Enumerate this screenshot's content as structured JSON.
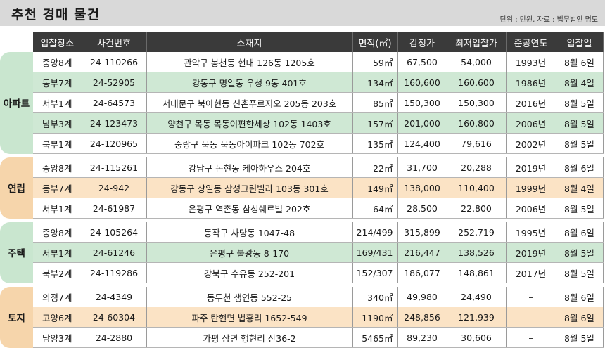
{
  "title": "추천 경매 물건",
  "unit_note": "단위 : 만원, 자료 : 법무법인 명도",
  "headers": [
    "입찰장소",
    "사건번호",
    "소재지",
    "면적(㎡)",
    "감정가",
    "최저입찰가",
    "준공연도",
    "입찰일"
  ],
  "groups": [
    {
      "label": "아파트",
      "theme": "green",
      "rows": [
        {
          "court": "중앙8계",
          "case": "24-110266",
          "address": "관악구 봉천동 현대 126동 1205호",
          "area": "59㎡",
          "appraisal": "67,500",
          "min_bid": "54,000",
          "built": "1993년",
          "date": "8월 6일"
        },
        {
          "court": "동부7계",
          "case": "24-52905",
          "address": "강동구 명일동 우성 9동 401호",
          "area": "134㎡",
          "appraisal": "160,600",
          "min_bid": "160,600",
          "built": "1986년",
          "date": "8월 4일"
        },
        {
          "court": "서부1계",
          "case": "24-64573",
          "address": "서대문구 북아현동 신촌푸르지오 205동 203호",
          "area": "85㎡",
          "appraisal": "150,300",
          "min_bid": "150,300",
          "built": "2016년",
          "date": "8월 5일"
        },
        {
          "court": "남부3계",
          "case": "24-123473",
          "address": "양천구 목동 목동이편한세상 102동 1403호",
          "area": "157㎡",
          "appraisal": "201,000",
          "min_bid": "160,800",
          "built": "2006년",
          "date": "8월 5일"
        },
        {
          "court": "북부1계",
          "case": "24-120965",
          "address": "중랑구 묵동 묵동아이파크 102동 702호",
          "area": "135㎡",
          "appraisal": "124,400",
          "min_bid": "79,616",
          "built": "2002년",
          "date": "8월 5일"
        }
      ]
    },
    {
      "label": "연립",
      "theme": "orange",
      "rows": [
        {
          "court": "중앙8계",
          "case": "24-115261",
          "address": "강남구 논현동 케아하우스 204호",
          "area": "22㎡",
          "appraisal": "31,700",
          "min_bid": "20,288",
          "built": "2019년",
          "date": "8월 6일"
        },
        {
          "court": "동부7계",
          "case": "24-942",
          "address": "강동구 상일동 삼성그린빌라 103동 301호",
          "area": "149㎡",
          "appraisal": "138,000",
          "min_bid": "110,400",
          "built": "1999년",
          "date": "8월 4일"
        },
        {
          "court": "서부1계",
          "case": "24-61987",
          "address": "은평구 역촌동 삼성쉐르빌 202호",
          "area": "64㎡",
          "appraisal": "28,500",
          "min_bid": "22,800",
          "built": "2006년",
          "date": "8월 5일"
        }
      ]
    },
    {
      "label": "주택",
      "theme": "green",
      "rows": [
        {
          "court": "중앙8계",
          "case": "24-105264",
          "address": "동작구 사당동 1047-48",
          "area": "214/499",
          "appraisal": "315,899",
          "min_bid": "252,719",
          "built": "1995년",
          "date": "8월 6일"
        },
        {
          "court": "서부1계",
          "case": "24-61246",
          "address": "은평구 불광동 8-170",
          "area": "169/431",
          "appraisal": "216,447",
          "min_bid": "138,526",
          "built": "2019년",
          "date": "8월 5일"
        },
        {
          "court": "북부2계",
          "case": "24-119286",
          "address": "강북구 수유동 252-201",
          "area": "152/307",
          "appraisal": "186,077",
          "min_bid": "148,861",
          "built": "2017년",
          "date": "8월 5일"
        }
      ]
    },
    {
      "label": "토지",
      "theme": "orange",
      "rows": [
        {
          "court": "의정7계",
          "case": "24-4349",
          "address": "동두천 생연동 552-25",
          "area": "340㎡",
          "appraisal": "49,980",
          "min_bid": "24,490",
          "built": "–",
          "date": "8월 6일"
        },
        {
          "court": "고양6계",
          "case": "24-60304",
          "address": "파주 탄현면 법흥리 1652-549",
          "area": "1190㎡",
          "appraisal": "248,856",
          "min_bid": "121,939",
          "built": "–",
          "date": "8월 6일"
        },
        {
          "court": "남양3계",
          "case": "24-2880",
          "address": "가평 상면 행현리 산36-2",
          "area": "5465㎡",
          "appraisal": "89,230",
          "min_bid": "30,606",
          "built": "–",
          "date": "8월 5일"
        }
      ]
    }
  ]
}
